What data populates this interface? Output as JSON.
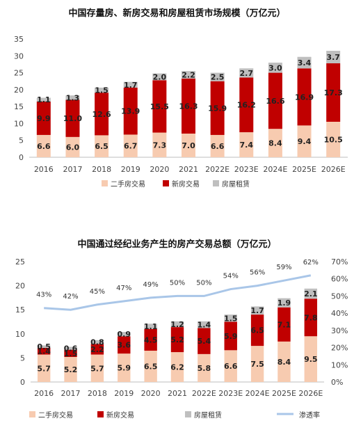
{
  "chart_data": [
    {
      "type": "bar",
      "stacked": true,
      "title": "中国存量房、新房交易和房屋租赁市场规模（万亿元）",
      "categories": [
        "2016",
        "2017",
        "2018",
        "2019",
        "2020",
        "2021",
        "2022E",
        "2023E",
        "2024E",
        "2025E",
        "2026E"
      ],
      "series": [
        {
          "name": "二手房交易",
          "color": "#f7cbb0",
          "values": [
            6.6,
            6.0,
            6.5,
            6.7,
            7.3,
            7.0,
            6.6,
            7.4,
            8.4,
            9.4,
            10.5
          ]
        },
        {
          "name": "新房交易",
          "color": "#c00000",
          "values": [
            9.9,
            11.0,
            12.6,
            13.9,
            15.5,
            16.3,
            15.9,
            16.2,
            16.6,
            16.9,
            17.3
          ]
        },
        {
          "name": "房屋租赁",
          "color": "#bfbfbf",
          "values": [
            1.1,
            1.3,
            1.5,
            1.7,
            2.0,
            2.2,
            2.5,
            2.7,
            3.0,
            3.4,
            3.7
          ]
        }
      ],
      "ylim": [
        0,
        35
      ],
      "yticks": [
        0,
        5,
        10,
        15,
        20,
        25,
        30,
        35
      ],
      "legend": "bottom"
    },
    {
      "type": "bar",
      "stacked": true,
      "title": "中国通过经纪业务产生的房产交易总额（万亿元）",
      "categories": [
        "2016",
        "2017",
        "2018",
        "2019",
        "2020",
        "2021",
        "2022E",
        "2023E",
        "2024E",
        "2025E",
        "2026E"
      ],
      "series": [
        {
          "name": "二手房交易",
          "color": "#f7cbb0",
          "values": [
            5.7,
            5.2,
            5.7,
            5.9,
            6.5,
            6.2,
            5.8,
            6.6,
            7.5,
            8.4,
            9.5
          ]
        },
        {
          "name": "新房交易",
          "color": "#c00000",
          "values": [
            1.4,
            1.5,
            2.2,
            3.6,
            4.5,
            5.2,
            5.4,
            5.9,
            6.5,
            7.1,
            7.8
          ]
        },
        {
          "name": "房屋租赁",
          "color": "#bfbfbf",
          "values": [
            0.5,
            0.6,
            0.8,
            0.9,
            1.1,
            1.2,
            1.4,
            1.5,
            1.7,
            1.9,
            2.1
          ]
        }
      ],
      "line": {
        "name": "渗透率",
        "color": "#a9c6e8",
        "values": [
          43,
          42,
          45,
          47,
          49,
          50,
          50,
          54,
          56,
          59,
          62
        ],
        "labels": [
          "43%",
          "42%",
          "45%",
          "47%",
          "49%",
          "50%",
          "50%",
          "54%",
          "56%",
          "59%",
          "62%"
        ]
      },
      "ylim": [
        0,
        25
      ],
      "yticks": [
        0,
        5,
        10,
        15,
        20,
        25
      ],
      "y2lim": [
        0,
        70
      ],
      "y2ticks": [
        "0%",
        "10%",
        "20%",
        "30%",
        "40%",
        "50%",
        "60%",
        "70%"
      ],
      "legend": "bottom"
    }
  ]
}
